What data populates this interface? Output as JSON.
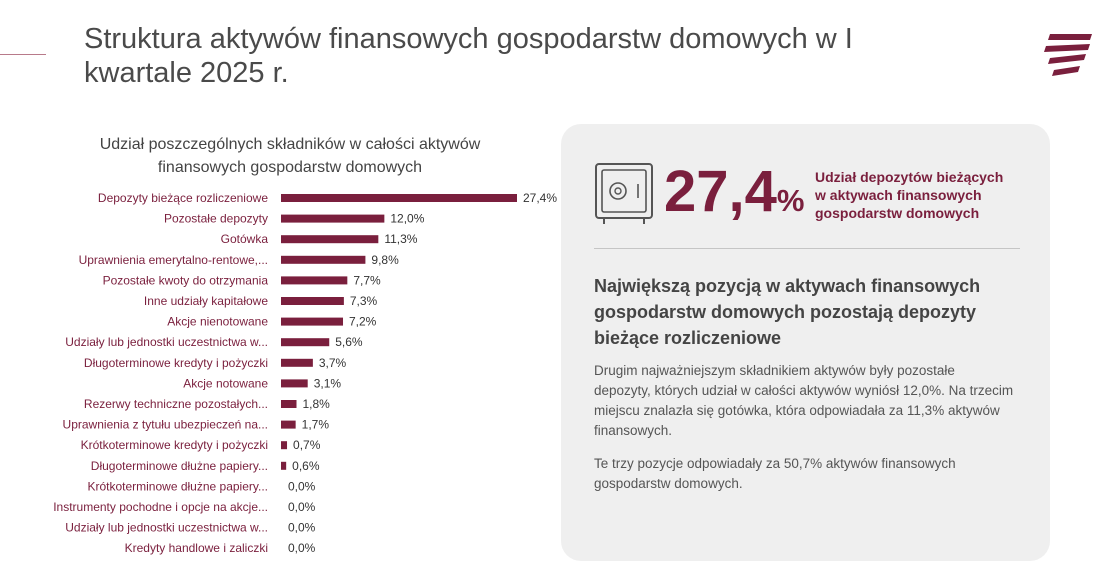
{
  "slide": {
    "title": "Struktura aktywów finansowych gospodarstw domowych w I kwartale 2025 r."
  },
  "colors": {
    "bar": "#7a1f3d",
    "accent": "#7a1f3d",
    "panel_bg": "#efefef"
  },
  "icons": {
    "logo": "brand-logo",
    "safe": "safe-icon"
  },
  "chart_data": {
    "type": "bar",
    "orientation": "horizontal",
    "title": "Udział poszczególnych składników w całości aktywów finansowych gospodarstw domowych",
    "categories": [
      "Depozyty bieżące rozliczeniowe",
      "Pozostałe depozyty",
      "Gotówka",
      "Uprawnienia emerytalno-rentowe,...",
      "Pozostałe kwoty do otrzymania",
      "Inne udziały kapitałowe",
      "Akcje nienotowane",
      "Udziały lub jednostki uczestnictwa w...",
      "Długoterminowe kredyty i pożyczki",
      "Akcje notowane",
      "Rezerwy techniczne pozostałych...",
      "Uprawnienia z tytułu ubezpieczeń na...",
      "Krótkoterminowe kredyty i pożyczki",
      "Długoterminowe dłużne papiery...",
      "Krótkoterminowe dłużne papiery...",
      "Instrumenty pochodne i opcje na akcje...",
      "Udziały lub jednostki uczestnictwa w...",
      "Kredyty handlowe i zaliczki"
    ],
    "values": [
      27.4,
      12.0,
      11.3,
      9.8,
      7.7,
      7.3,
      7.2,
      5.6,
      3.7,
      3.1,
      1.8,
      1.7,
      0.7,
      0.6,
      0.0,
      0.0,
      0.0,
      0.0
    ],
    "labels": [
      "27,4%",
      "12,0%",
      "11,3%",
      "9,8%",
      "7,7%",
      "7,3%",
      "7,2%",
      "5,6%",
      "3,7%",
      "3,1%",
      "1,8%",
      "1,7%",
      "0,7%",
      "0,6%",
      "0,0%",
      "0,0%",
      "0,0%",
      "0,0%"
    ],
    "xlim": [
      0,
      27.4
    ],
    "grid": false,
    "legend": "none"
  },
  "panel": {
    "big_number": "27,4",
    "big_number_unit": "%",
    "highlight_text": "Udział depozytów bieżących w aktywach finansowych gospodarstw domowych",
    "headline": "Największą pozycją w aktywach finansowych gospodarstw domowych pozostają depozyty bieżące rozliczeniowe",
    "paragraph1": "Drugim najważniejszym składnikiem aktywów były pozostałe depozyty, których udział w całości aktywów wyniósł 12,0%. Na trzecim miejscu znalazła się gotówka, która odpowiadała za 11,3% aktywów finansowych.",
    "paragraph2": "Te trzy pozycje odpowiadały za 50,7% aktywów finansowych gospodarstw domowych."
  }
}
